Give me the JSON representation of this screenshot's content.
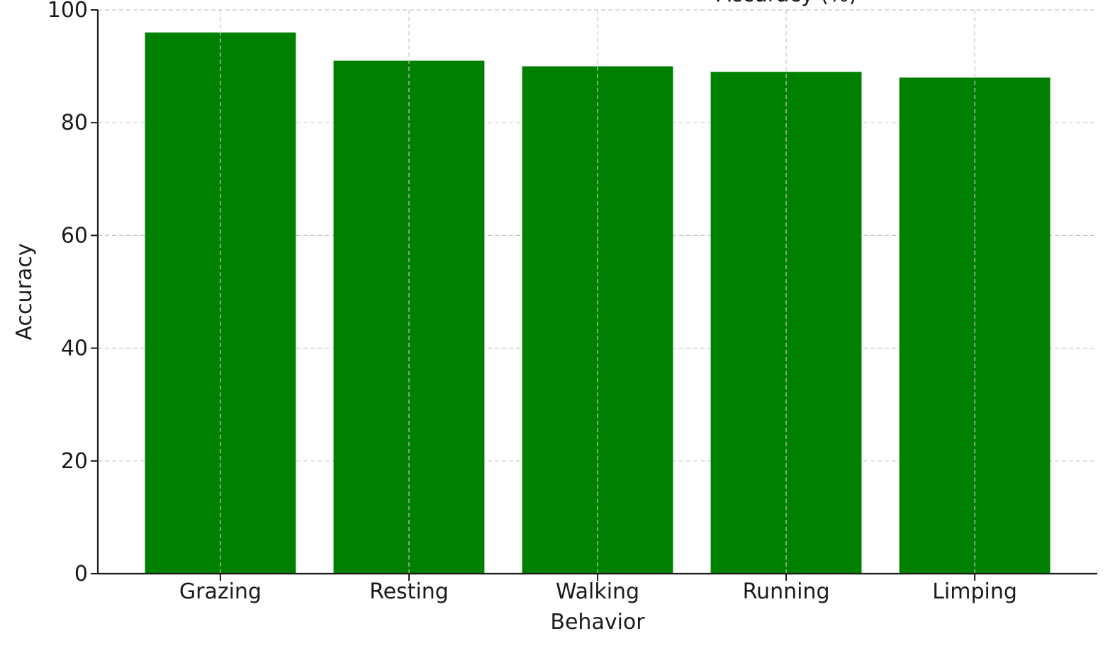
{
  "chart_data": {
    "type": "bar",
    "title": "Accuracy (%)",
    "xlabel": "Behavior",
    "ylabel": "Accuracy",
    "categories": [
      "Grazing",
      "Resting",
      "Walking",
      "Running",
      "Limping"
    ],
    "values": [
      96,
      91,
      90,
      89,
      88
    ],
    "ylim": [
      0,
      100
    ],
    "yticks": [
      0,
      20,
      40,
      60,
      80,
      100
    ],
    "bar_color": "#008000",
    "grid": true
  }
}
